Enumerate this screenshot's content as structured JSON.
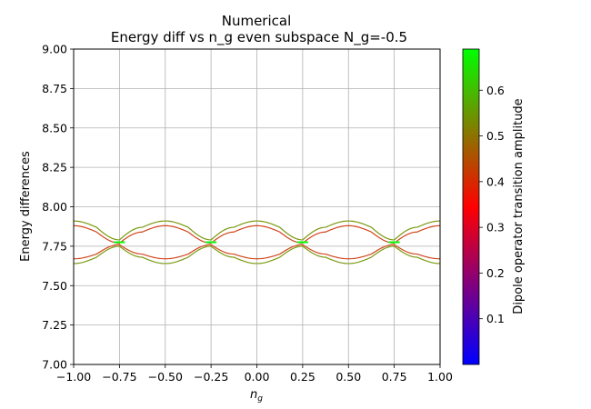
{
  "chart_data": {
    "type": "line",
    "title": "Numerical",
    "subtitle": "Energy diff vs n_g even subspace N_g=-0.5",
    "xlabel_main": "n",
    "xlabel_sub": "g",
    "ylabel": "Energy differences",
    "xlim": [
      -1.0,
      1.0
    ],
    "ylim": [
      7.0,
      9.0
    ],
    "x_ticks": [
      -1.0,
      -0.75,
      -0.5,
      -0.25,
      0.0,
      0.25,
      0.5,
      0.75,
      1.0
    ],
    "x_tick_labels": [
      "−1.00",
      "−0.75",
      "−0.50",
      "−0.25",
      "0.00",
      "0.25",
      "0.50",
      "0.75",
      "1.00"
    ],
    "y_ticks": [
      7.0,
      7.25,
      7.5,
      7.75,
      8.0,
      8.25,
      8.5,
      8.75,
      9.0
    ],
    "y_tick_labels": [
      "7.00",
      "7.25",
      "7.50",
      "7.75",
      "8.00",
      "8.25",
      "8.50",
      "8.75",
      "9.00"
    ],
    "grid": true,
    "colorbar": {
      "label": "Dipole operator transition amplitude",
      "range": [
        0.0,
        0.69
      ],
      "ticks": [
        0.1,
        0.2,
        0.3,
        0.4,
        0.5,
        0.6
      ],
      "tick_labels": [
        "0.1",
        "0.2",
        "0.3",
        "0.4",
        "0.5",
        "0.6"
      ],
      "colors": [
        "#0000ff",
        "#ff0000",
        "#00ff00"
      ]
    },
    "series": [
      {
        "color": "#7a9a12",
        "amplitude": 0.55,
        "x": [
          -1.0,
          -0.875,
          -0.75,
          -0.625,
          -0.5,
          -0.375,
          -0.25,
          -0.125,
          0.0,
          0.125,
          0.25,
          0.375,
          0.5,
          0.625,
          0.75,
          0.875,
          1.0
        ],
        "y": [
          7.91,
          7.87,
          7.79,
          7.87,
          7.91,
          7.87,
          7.79,
          7.87,
          7.91,
          7.87,
          7.79,
          7.87,
          7.91,
          7.87,
          7.79,
          7.87,
          7.91
        ]
      },
      {
        "color": "#d2461e",
        "amplitude": 0.38,
        "x": [
          -1.0,
          -0.875,
          -0.75,
          -0.625,
          -0.5,
          -0.375,
          -0.25,
          -0.125,
          0.0,
          0.125,
          0.25,
          0.375,
          0.5,
          0.625,
          0.75,
          0.875,
          1.0
        ],
        "y": [
          7.88,
          7.84,
          7.77,
          7.84,
          7.88,
          7.84,
          7.77,
          7.84,
          7.88,
          7.84,
          7.77,
          7.84,
          7.88,
          7.84,
          7.77,
          7.84,
          7.88
        ]
      },
      {
        "color": "#d2461e",
        "amplitude": 0.38,
        "x": [
          -1.0,
          -0.875,
          -0.75,
          -0.625,
          -0.5,
          -0.375,
          -0.25,
          -0.125,
          0.0,
          0.125,
          0.25,
          0.375,
          0.5,
          0.625,
          0.75,
          0.875,
          1.0
        ],
        "y": [
          7.67,
          7.7,
          7.76,
          7.7,
          7.67,
          7.7,
          7.76,
          7.7,
          7.67,
          7.7,
          7.76,
          7.7,
          7.67,
          7.7,
          7.76,
          7.7,
          7.67
        ]
      },
      {
        "color": "#7a9a12",
        "amplitude": 0.55,
        "x": [
          -1.0,
          -0.875,
          -0.75,
          -0.625,
          -0.5,
          -0.375,
          -0.25,
          -0.125,
          0.0,
          0.125,
          0.25,
          0.375,
          0.5,
          0.625,
          0.75,
          0.875,
          1.0
        ],
        "y": [
          7.64,
          7.68,
          7.75,
          7.68,
          7.64,
          7.68,
          7.75,
          7.68,
          7.64,
          7.68,
          7.75,
          7.68,
          7.64,
          7.68,
          7.75,
          7.68,
          7.64
        ]
      }
    ],
    "crossing_points": {
      "color": "#00ff00",
      "amplitude": 0.69,
      "x": [
        -0.75,
        -0.25,
        0.25,
        0.75
      ],
      "y": [
        7.775,
        7.775,
        7.775,
        7.775
      ]
    }
  }
}
